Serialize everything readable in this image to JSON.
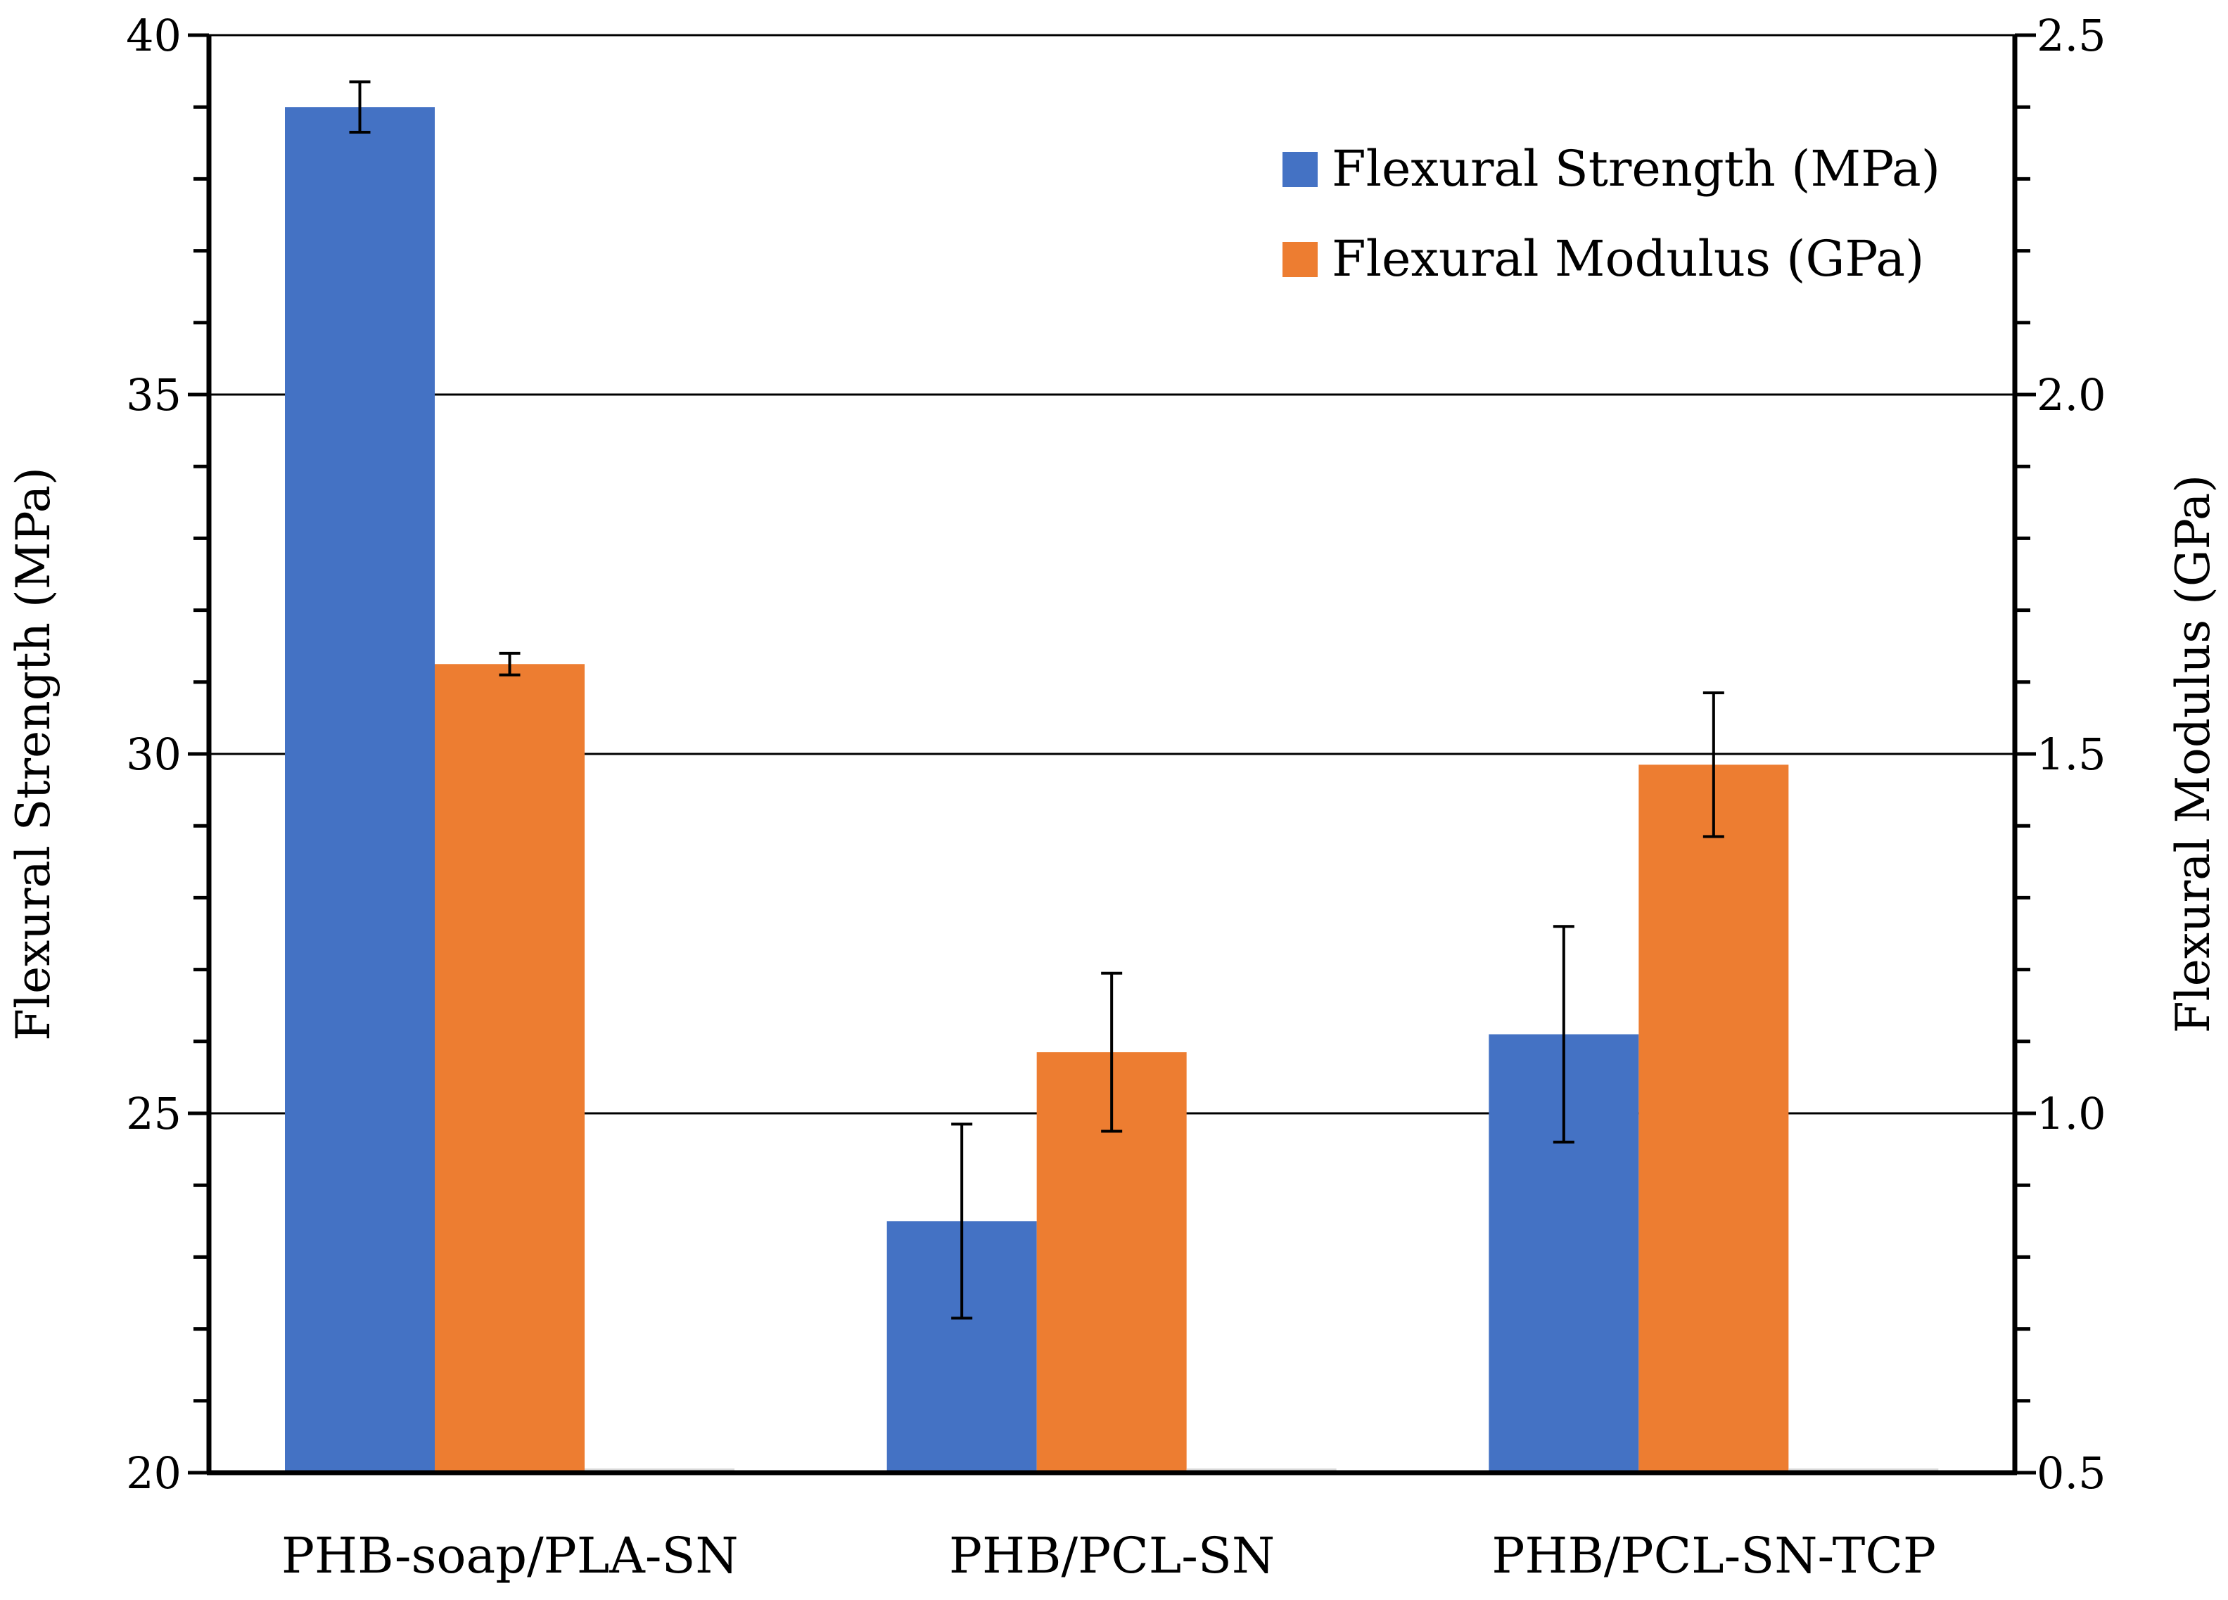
{
  "chart_data": {
    "type": "bar",
    "categories": [
      "PHB-soap/PLA-SN",
      "PHB/PCL-SN",
      "PHB/PCL-SN-TCP"
    ],
    "series": [
      {
        "name": "Flexural Strength (MPa)",
        "axis": "left",
        "color": "#4472C4",
        "values": [
          39.0,
          23.5,
          26.1
        ],
        "errors": [
          0.35,
          1.35,
          1.5
        ]
      },
      {
        "name": "Flexural Modulus (GPa)",
        "axis": "right",
        "color": "#ED7D31",
        "values": [
          1.625,
          1.085,
          1.485
        ],
        "errors": [
          0.015,
          0.11,
          0.1
        ]
      }
    ],
    "ylabel": "Flexural Strength (MPa)",
    "y2label": "Flexural Modulus (GPa)",
    "ylim": [
      20,
      40
    ],
    "y2lim": [
      0.5,
      2.5
    ],
    "yticks": [
      "20",
      "25",
      "30",
      "35",
      "40"
    ],
    "y2ticks": [
      "0.5",
      "1.0",
      "1.5",
      "2.0",
      "2.5"
    ],
    "grid": true,
    "legend_position": "top-right"
  }
}
